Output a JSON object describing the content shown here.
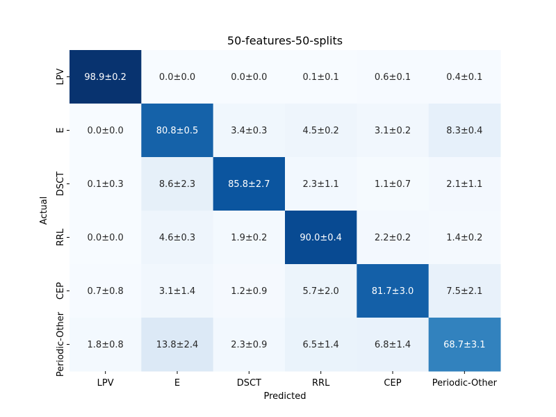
{
  "chart_data": {
    "type": "heatmap",
    "title": "50-features-50-splits",
    "xlabel": "Predicted",
    "ylabel": "Actual",
    "x_categories": [
      "LPV",
      "E",
      "DSCT",
      "RRL",
      "CEP",
      "Periodic-Other"
    ],
    "y_categories": [
      "LPV",
      "E",
      "DSCT",
      "RRL",
      "CEP",
      "Periodic-Other"
    ],
    "colormap": "Blues",
    "value_range": [
      0,
      100
    ],
    "colorbar": false,
    "values": [
      [
        98.9,
        0.0,
        0.0,
        0.1,
        0.6,
        0.4
      ],
      [
        0.0,
        80.8,
        3.4,
        4.5,
        3.1,
        8.3
      ],
      [
        0.1,
        8.6,
        85.8,
        2.3,
        1.1,
        2.1
      ],
      [
        0.0,
        4.6,
        1.9,
        90.0,
        2.2,
        1.4
      ],
      [
        0.7,
        3.1,
        1.2,
        5.7,
        81.7,
        7.5
      ],
      [
        1.8,
        13.8,
        2.3,
        6.5,
        6.8,
        68.7
      ]
    ],
    "cell_labels": [
      [
        "98.9±0.2",
        "0.0±0.0",
        "0.0±0.0",
        "0.1±0.1",
        "0.6±0.1",
        "0.4±0.1"
      ],
      [
        "0.0±0.0",
        "80.8±0.5",
        "3.4±0.3",
        "4.5±0.2",
        "3.1±0.2",
        "8.3±0.4"
      ],
      [
        "0.1±0.3",
        "8.6±2.3",
        "85.8±2.7",
        "2.3±1.1",
        "1.1±0.7",
        "2.1±1.1"
      ],
      [
        "0.0±0.0",
        "4.6±0.3",
        "1.9±0.2",
        "90.0±0.4",
        "2.2±0.2",
        "1.4±0.2"
      ],
      [
        "0.7±0.8",
        "3.1±1.4",
        "1.2±0.9",
        "5.7±2.0",
        "81.7±3.0",
        "7.5±2.1"
      ],
      [
        "1.8±0.8",
        "13.8±2.4",
        "2.3±0.9",
        "6.5±1.4",
        "6.8±1.4",
        "68.7±3.1"
      ]
    ]
  }
}
